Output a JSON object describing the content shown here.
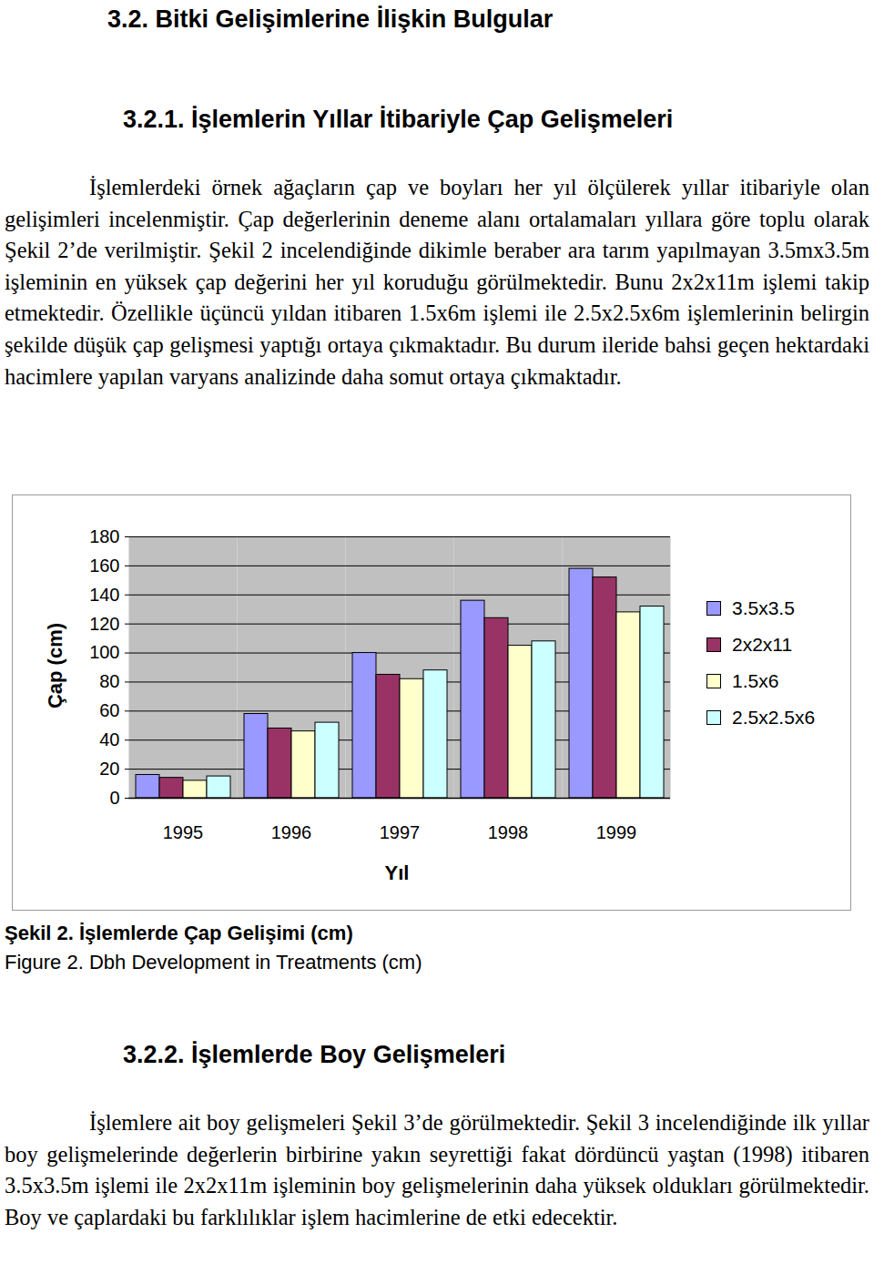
{
  "section": {
    "title": "3.2. Bitki Gelişimlerine İlişkin Bulgular"
  },
  "subsection_1": {
    "title": "3.2.1. İşlemlerin Yıllar İtibariyle Çap Gelişmeleri",
    "paragraph": "İşlemlerdeki örnek ağaçların çap ve boyları her yıl ölçülerek yıllar itibariyle olan gelişimleri incelenmiştir. Çap değerlerinin deneme alanı ortalamaları yıllara göre toplu olarak Şekil 2’de verilmiştir. Şekil 2 incelendiğinde dikimle beraber ara tarım yapılmayan 3.5mx3.5m işleminin en yüksek çap değerini her yıl koruduğu görülmektedir. Bunu 2x2x11m işlemi takip etmektedir. Özellikle üçüncü yıldan itibaren 1.5x6m işlemi ile 2.5x2.5x6m işlemlerinin belirgin şekilde düşük çap gelişmesi yaptığı ortaya çıkmaktadır. Bu durum ileride bahsi geçen hektardaki hacimlere yapılan varyans analizinde daha somut ortaya çıkmaktadır."
  },
  "chart_data": {
    "type": "bar",
    "x_label": "Yıl",
    "y_label": "Çap (cm)",
    "categories": [
      "1995",
      "1996",
      "1997",
      "1998",
      "1999"
    ],
    "series": [
      {
        "name": "3.5x3.5",
        "color": "#9999ff",
        "values": [
          16,
          58,
          100,
          136,
          158
        ]
      },
      {
        "name": "2x2x11",
        "color": "#993366",
        "values": [
          14,
          48,
          85,
          124,
          152
        ]
      },
      {
        "name": "1.5x6",
        "color": "#ffffcc",
        "values": [
          12,
          46,
          82,
          105,
          128
        ]
      },
      {
        "name": "2.5x2.5x6",
        "color": "#ccffff",
        "values": [
          15,
          52,
          88,
          108,
          132
        ]
      }
    ],
    "ylim": [
      0,
      180
    ],
    "yticks": [
      0,
      20,
      40,
      60,
      80,
      100,
      120,
      140,
      160,
      180
    ],
    "grid": true,
    "legend": "right"
  },
  "figure_caption": {
    "title": "Şekil 2. İşlemlerde Çap Gelişimi (cm)",
    "english": "Figure 2. Dbh Development in Treatments (cm)"
  },
  "subsection_2": {
    "title": "3.2.2. İşlemlerde Boy Gelişmeleri",
    "paragraph": "İşlemlere ait boy gelişmeleri Şekil 3’de görülmektedir. Şekil 3 incelendiğinde ilk yıllar boy gelişmelerinde değerlerin birbirine yakın seyrettiği fakat dördüncü yaştan (1998) itibaren 3.5x3.5m işlemi ile 2x2x11m işleminin boy gelişmelerinin daha yüksek oldukları görülmektedir. Boy ve çaplardaki bu farklılıklar işlem hacimlerine de etki edecektir."
  }
}
